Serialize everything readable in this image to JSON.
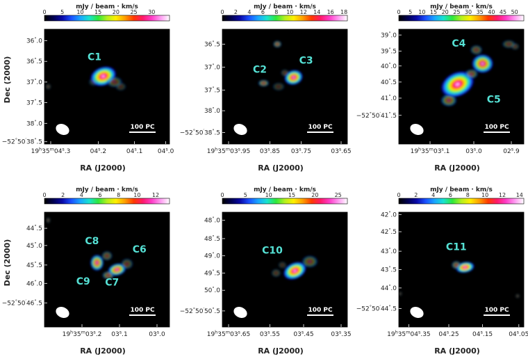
{
  "colorbar_title": "mJy / beam · km/s",
  "colors": {
    "cmap": [
      "#000000",
      "#000050",
      "#0a0aa8",
      "#1b50ff",
      "#1aa6ff",
      "#19e3d0",
      "#2ee83c",
      "#b4f020",
      "#fff000",
      "#ffa000",
      "#ff3a00",
      "#ff1a6a",
      "#ff3dc8",
      "#ff9cf2",
      "#ffffff"
    ],
    "label": "#55e0d4",
    "scale": "#ffffff"
  },
  "axis_labels": {
    "x": "RA (J2000)",
    "y": "Dec (2000)"
  },
  "scale_label": "100 PC",
  "panels": [
    {
      "name": "panel-c1",
      "colorbar": {
        "ticks": [
          "0",
          "5",
          "10",
          "15",
          "20",
          "25",
          "30"
        ],
        "max": 35
      },
      "yticks": [
        "36\".0",
        "36\".5",
        "37\".0",
        "37\".5",
        "38\".0",
        "−52°50′38\".5"
      ],
      "xticks": [
        "19h35m04s.3",
        "04s.2",
        "04s.1",
        "04s.0"
      ],
      "sources": [
        {
          "label": "C1"
        }
      ],
      "show_ylabel": true
    },
    {
      "name": "panel-c2-c3",
      "colorbar": {
        "ticks": [
          "0",
          "2",
          "4",
          "6",
          "8",
          "10",
          "12",
          "14",
          "16",
          "18"
        ],
        "max": 18.5
      },
      "yticks": [
        "36\".5",
        "37\".0",
        "37\".5",
        "38\".0",
        "−52°50′38\".5"
      ],
      "xticks": [
        "19h35m03s.95",
        "03s.85",
        "03s.75",
        "03s.65"
      ],
      "sources": [
        {
          "label": "C2"
        },
        {
          "label": "C3"
        }
      ],
      "show_ylabel": false
    },
    {
      "name": "panel-c4-c5",
      "colorbar": {
        "ticks": [
          "0",
          "5",
          "10",
          "15",
          "20",
          "25",
          "30",
          "35",
          "40",
          "45",
          "50"
        ],
        "max": 54
      },
      "yticks": [
        "39\".0",
        "39\".5",
        "40\".0",
        "40\".5",
        "41\".0",
        "−52°50′41\".5"
      ],
      "xticks": [
        "19h35m03s.1",
        "03s.0",
        "02s.9"
      ],
      "sources": [
        {
          "label": "C4"
        },
        {
          "label": "C5"
        }
      ],
      "show_ylabel": false
    },
    {
      "name": "panel-c6-c9",
      "colorbar": {
        "ticks": [
          "0",
          "2",
          "4",
          "6",
          "8",
          "10",
          "12"
        ],
        "max": 13.5
      },
      "yticks": [
        "44\".5",
        "45\".0",
        "45\".5",
        "46\".0",
        "−52°50′46\".5"
      ],
      "xticks": [
        "19h35m03s.2",
        "03s.1",
        "03s.0"
      ],
      "sources": [
        {
          "label": "C8"
        },
        {
          "label": "C6"
        },
        {
          "label": "C9"
        },
        {
          "label": "C7"
        }
      ],
      "show_ylabel": true
    },
    {
      "name": "panel-c10",
      "colorbar": {
        "ticks": [
          "0",
          "5",
          "10",
          "15",
          "20",
          "25"
        ],
        "max": 27
      },
      "yticks": [
        "48\".0",
        "48\".5",
        "49\".0",
        "49\".5",
        "50\".0",
        "−52°50′50\".5"
      ],
      "xticks": [
        "19h35m03s.65",
        "03s.55",
        "03s.45",
        "03s.35"
      ],
      "sources": [
        {
          "label": "C10"
        }
      ],
      "show_ylabel": false
    },
    {
      "name": "panel-c11",
      "colorbar": {
        "ticks": [
          "0",
          "2",
          "4",
          "6",
          "8",
          "10",
          "12",
          "14"
        ],
        "max": 14.5
      },
      "yticks": [
        "42\".0",
        "42\".5",
        "43\".0",
        "43\".5",
        "44\".0",
        "−52°50′44\".5"
      ],
      "xticks": [
        "19h35m04s.35",
        "04s.25",
        "04s.15",
        "04s.05"
      ],
      "sources": [
        {
          "label": "C11"
        }
      ],
      "show_ylabel": false
    }
  ]
}
